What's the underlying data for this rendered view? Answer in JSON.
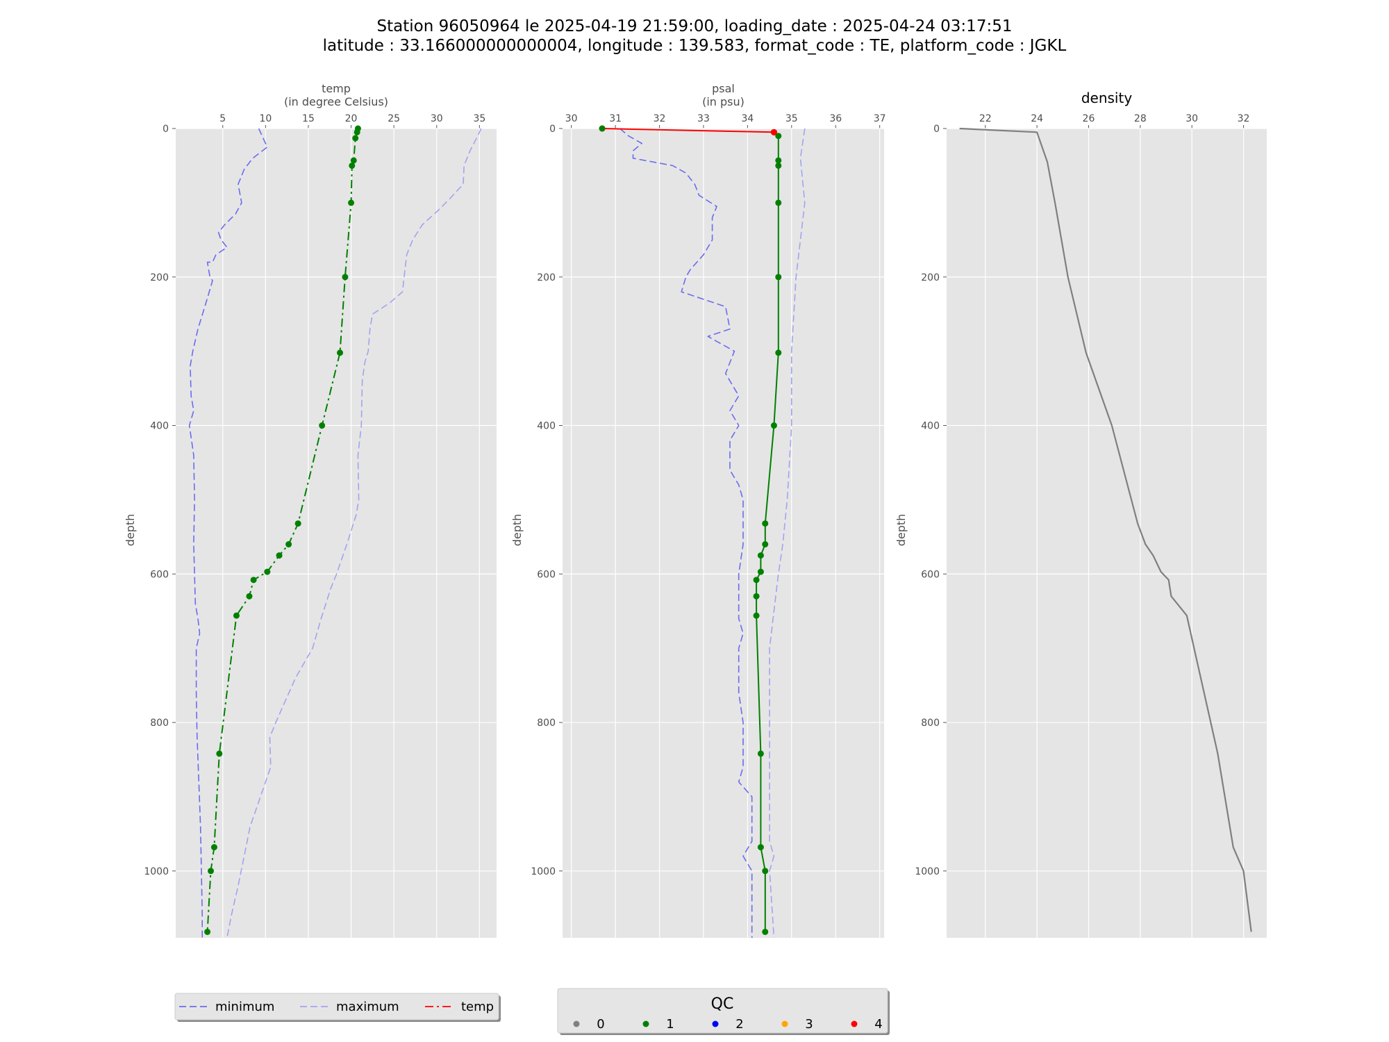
{
  "title_line1": "Station 96050964 le 2025-04-19 21:59:00, loading_date : 2025-04-24 03:17:51",
  "title_line2": "latitude : 33.166000000000004, longitude : 139.583, format_code : TE, platform_code : JGKL",
  "colors": {
    "panel_bg": "#e5e5e5",
    "grid": "#ffffff",
    "minimum": "#6b6bf0",
    "maximum": "#a3a3f0",
    "qc0": "#808080",
    "qc1": "#008000",
    "qc2": "#0000ff",
    "qc3": "#ffa500",
    "qc4": "#ff0000",
    "density": "#7f7f7f"
  },
  "chart_data": [
    {
      "type": "line",
      "xlabel_line1": "temp",
      "xlabel_line2": "(in degree Celsius)",
      "ylabel": "depth",
      "xlim": [
        -0.5,
        37
      ],
      "ylim": [
        1090,
        0
      ],
      "y_inverted": true,
      "xticks": [
        5,
        10,
        15,
        20,
        25,
        30,
        35
      ],
      "yticks": [
        0,
        200,
        400,
        600,
        800,
        1000
      ],
      "grid": true,
      "series": [
        {
          "name": "minimum",
          "style": "dashed",
          "points": [
            [
              9.2,
              0
            ],
            [
              10.2,
              25
            ],
            [
              8.5,
              40
            ],
            [
              7.5,
              55
            ],
            [
              6.8,
              75
            ],
            [
              7.2,
              100
            ],
            [
              6.5,
              115
            ],
            [
              5.2,
              130
            ],
            [
              4.5,
              140
            ],
            [
              4.8,
              150
            ],
            [
              5.5,
              160
            ],
            [
              4.2,
              170
            ],
            [
              3.8,
              180
            ],
            [
              3.2,
              180
            ],
            [
              3.5,
              200
            ],
            [
              3.8,
              205
            ],
            [
              2.9,
              240
            ],
            [
              2.1,
              270
            ],
            [
              1.5,
              300
            ],
            [
              1.2,
              320
            ],
            [
              1.3,
              360
            ],
            [
              1.6,
              380
            ],
            [
              1.1,
              400
            ],
            [
              1.6,
              440
            ],
            [
              1.7,
              500
            ],
            [
              1.6,
              560
            ],
            [
              1.7,
              600
            ],
            [
              1.8,
              640
            ],
            [
              2.1,
              660
            ],
            [
              2.3,
              680
            ],
            [
              1.9,
              700
            ],
            [
              1.9,
              760
            ],
            [
              2.0,
              820
            ],
            [
              2.2,
              880
            ],
            [
              2.4,
              940
            ],
            [
              2.5,
              1000
            ],
            [
              2.6,
              1060
            ],
            [
              2.6,
              1090
            ]
          ]
        },
        {
          "name": "maximum",
          "style": "dashed",
          "points": [
            [
              35.2,
              0
            ],
            [
              34.8,
              10
            ],
            [
              33.9,
              30
            ],
            [
              33.2,
              50
            ],
            [
              33.1,
              75
            ],
            [
              31.5,
              95
            ],
            [
              30.2,
              110
            ],
            [
              28.3,
              130
            ],
            [
              27.2,
              150
            ],
            [
              26.5,
              170
            ],
            [
              26.2,
              200
            ],
            [
              26.0,
              220
            ],
            [
              24.5,
              235
            ],
            [
              22.5,
              250
            ],
            [
              22.2,
              270
            ],
            [
              22.0,
              300
            ],
            [
              21.6,
              315
            ],
            [
              21.3,
              340
            ],
            [
              21.2,
              400
            ],
            [
              20.8,
              440
            ],
            [
              20.9,
              500
            ],
            [
              20.6,
              520
            ],
            [
              19.5,
              560
            ],
            [
              18.3,
              600
            ],
            [
              17.6,
              620
            ],
            [
              16.5,
              660
            ],
            [
              15.5,
              700
            ],
            [
              13.5,
              740
            ],
            [
              11.2,
              800
            ],
            [
              10.5,
              820
            ],
            [
              10.6,
              860
            ],
            [
              9.4,
              900
            ],
            [
              8.2,
              940
            ],
            [
              7.5,
              980
            ],
            [
              6.8,
              1020
            ],
            [
              6.0,
              1060
            ],
            [
              5.5,
              1090
            ]
          ]
        }
      ],
      "qc_series": [
        {
          "name": "temp",
          "style": "dash-dot",
          "qc": 1,
          "points": [
            [
              20.8,
              0
            ],
            [
              20.7,
              5
            ],
            [
              20.5,
              13
            ],
            [
              20.3,
              43
            ],
            [
              20.1,
              50
            ],
            [
              20.0,
              100
            ],
            [
              19.3,
              200
            ],
            [
              18.7,
              302
            ],
            [
              16.6,
              400
            ],
            [
              13.8,
              532
            ],
            [
              12.7,
              560
            ],
            [
              11.6,
              575
            ],
            [
              10.2,
              597
            ],
            [
              8.6,
              608
            ],
            [
              8.1,
              630
            ],
            [
              6.6,
              656
            ],
            [
              4.6,
              842
            ],
            [
              4.0,
              968
            ],
            [
              3.6,
              1000
            ],
            [
              3.2,
              1082
            ]
          ]
        }
      ]
    },
    {
      "type": "line",
      "xlabel_line1": "psal",
      "xlabel_line2": "(in psu)",
      "ylabel": "depth",
      "xlim": [
        29.8,
        37.1
      ],
      "ylim": [
        1090,
        0
      ],
      "y_inverted": true,
      "xticks": [
        30,
        31,
        32,
        33,
        34,
        35,
        36,
        37
      ],
      "yticks": [
        0,
        200,
        400,
        600,
        800,
        1000
      ],
      "grid": true,
      "series": [
        {
          "name": "minimum",
          "style": "dashed",
          "points": [
            [
              31.1,
              0
            ],
            [
              31.3,
              10
            ],
            [
              31.6,
              20
            ],
            [
              31.4,
              30
            ],
            [
              31.4,
              40
            ],
            [
              32.3,
              50
            ],
            [
              32.6,
              60
            ],
            [
              32.8,
              75
            ],
            [
              32.9,
              90
            ],
            [
              33.3,
              105
            ],
            [
              33.2,
              120
            ],
            [
              33.2,
              150
            ],
            [
              33.0,
              170
            ],
            [
              32.7,
              190
            ],
            [
              32.6,
              200
            ],
            [
              32.5,
              220
            ],
            [
              33.5,
              240
            ],
            [
              33.6,
              270
            ],
            [
              33.1,
              280
            ],
            [
              33.7,
              300
            ],
            [
              33.5,
              330
            ],
            [
              33.8,
              360
            ],
            [
              33.6,
              380
            ],
            [
              33.8,
              400
            ],
            [
              33.6,
              420
            ],
            [
              33.6,
              460
            ],
            [
              33.8,
              480
            ],
            [
              33.9,
              500
            ],
            [
              33.9,
              560
            ],
            [
              33.8,
              600
            ],
            [
              33.8,
              660
            ],
            [
              33.9,
              680
            ],
            [
              33.8,
              700
            ],
            [
              33.8,
              760
            ],
            [
              33.9,
              800
            ],
            [
              33.9,
              860
            ],
            [
              33.8,
              880
            ],
            [
              34.1,
              900
            ],
            [
              34.1,
              960
            ],
            [
              33.9,
              980
            ],
            [
              34.1,
              1000
            ],
            [
              34.1,
              1090
            ]
          ]
        },
        {
          "name": "maximum",
          "style": "dashed",
          "points": [
            [
              35.3,
              0
            ],
            [
              35.2,
              40
            ],
            [
              35.3,
              100
            ],
            [
              35.2,
              150
            ],
            [
              35.1,
              200
            ],
            [
              35.0,
              300
            ],
            [
              35.0,
              400
            ],
            [
              34.9,
              500
            ],
            [
              34.8,
              560
            ],
            [
              34.7,
              600
            ],
            [
              34.6,
              650
            ],
            [
              34.5,
              700
            ],
            [
              34.5,
              800
            ],
            [
              34.5,
              900
            ],
            [
              34.5,
              960
            ],
            [
              34.6,
              980
            ],
            [
              34.5,
              1000
            ],
            [
              34.6,
              1090
            ]
          ]
        }
      ],
      "qc_series": [
        {
          "name": "psal-qc4",
          "style": "solid",
          "qc": 4,
          "points": [
            [
              30.7,
              0
            ],
            [
              34.6,
              5
            ]
          ]
        },
        {
          "name": "psal-qc1",
          "style": "solid",
          "qc": 1,
          "points": [
            [
              34.6,
              5
            ],
            [
              34.7,
              10
            ],
            [
              34.7,
              43
            ],
            [
              34.7,
              50
            ],
            [
              34.7,
              100
            ],
            [
              34.7,
              200
            ],
            [
              34.7,
              302
            ],
            [
              34.6,
              400
            ],
            [
              34.4,
              532
            ],
            [
              34.4,
              560
            ],
            [
              34.3,
              575
            ],
            [
              34.3,
              597
            ],
            [
              34.2,
              608
            ],
            [
              34.2,
              630
            ],
            [
              34.2,
              656
            ],
            [
              34.3,
              842
            ],
            [
              34.3,
              968
            ],
            [
              34.4,
              1000
            ],
            [
              34.4,
              1082
            ]
          ]
        }
      ],
      "qc_markers": [
        {
          "x": 30.7,
          "y": 0,
          "qc": 1
        },
        {
          "x": 34.6,
          "y": 5,
          "qc": 4
        }
      ]
    },
    {
      "type": "line",
      "title": "density",
      "ylabel": "depth",
      "xlim": [
        20.5,
        32.9
      ],
      "ylim": [
        1090,
        0
      ],
      "y_inverted": true,
      "xticks": [
        22,
        24,
        26,
        28,
        30,
        32
      ],
      "yticks": [
        0,
        200,
        400,
        600,
        800,
        1000
      ],
      "grid": true,
      "series": [
        {
          "name": "density",
          "style": "solid",
          "points": [
            [
              21.0,
              0
            ],
            [
              24.0,
              5
            ],
            [
              24.4,
              45
            ],
            [
              24.7,
              100
            ],
            [
              25.2,
              200
            ],
            [
              25.9,
              302
            ],
            [
              26.9,
              400
            ],
            [
              27.9,
              532
            ],
            [
              28.2,
              560
            ],
            [
              28.5,
              575
            ],
            [
              28.8,
              597
            ],
            [
              29.1,
              608
            ],
            [
              29.2,
              630
            ],
            [
              29.8,
              656
            ],
            [
              31.0,
              842
            ],
            [
              31.6,
              968
            ],
            [
              32.0,
              1000
            ],
            [
              32.3,
              1082
            ]
          ]
        }
      ]
    }
  ],
  "legend_lines": {
    "items": [
      {
        "label": "minimum",
        "style": "dashed",
        "color_key": "minimum"
      },
      {
        "label": "maximum",
        "style": "dashed",
        "color_key": "maximum"
      },
      {
        "label": "temp",
        "style": "dash-dot",
        "color_key": "qc4"
      }
    ]
  },
  "legend_qc": {
    "title": "QC",
    "items": [
      {
        "label": "0",
        "color_key": "qc0"
      },
      {
        "label": "1",
        "color_key": "qc1"
      },
      {
        "label": "2",
        "color_key": "qc2"
      },
      {
        "label": "3",
        "color_key": "qc3"
      },
      {
        "label": "4",
        "color_key": "qc4"
      }
    ]
  }
}
